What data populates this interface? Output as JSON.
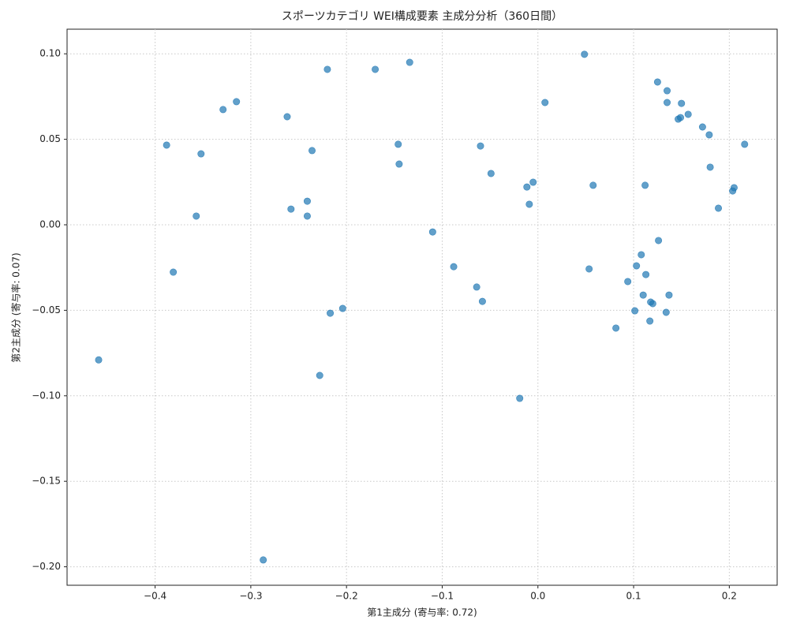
{
  "chart_data": {
    "type": "scatter",
    "title": "スポーツカテゴリ WEI構成要素 主成分分析（360日間）",
    "x_label": "第1主成分 (寄与率: 0.72)",
    "y_label": "第2主成分 (寄与率: 0.07)",
    "color": "#1f77b4",
    "grid": true,
    "xlim": [
      -0.492,
      0.25
    ],
    "ylim": [
      -0.2108,
      0.1144
    ],
    "xticks": [
      {
        "value": -0.4,
        "label": "−0.4"
      },
      {
        "value": -0.3,
        "label": "−0.3"
      },
      {
        "value": -0.2,
        "label": "−0.2"
      },
      {
        "value": -0.1,
        "label": "−0.1"
      },
      {
        "value": 0,
        "label": "0.0"
      },
      0.1,
      0.2
    ],
    "yticks": [
      {
        "value": -0.2,
        "label": "−0.20"
      },
      {
        "value": -0.15,
        "label": "−0.15"
      },
      {
        "value": -0.1,
        "label": "−0.10"
      },
      {
        "value": -0.05,
        "label": "−0.05"
      },
      {
        "value": 0,
        "label": "0.00"
      },
      {
        "value": 0.05,
        "label": "0.05"
      },
      {
        "value": 0.1,
        "label": "0.10"
      }
    ],
    "x": [
      -0.459,
      -0.388,
      -0.381,
      -0.357,
      -0.352,
      -0.329,
      -0.315,
      -0.287,
      -0.262,
      -0.258,
      -0.241,
      -0.241,
      -0.236,
      -0.228,
      -0.22,
      -0.217,
      -0.204,
      -0.17,
      -0.146,
      -0.145,
      -0.134,
      -0.11,
      -0.088,
      -0.064,
      -0.06,
      -0.058,
      -0.049,
      -0.019,
      -0.0115,
      -0.009,
      -0.005,
      0.0074,
      0.0486,
      0.0535,
      0.0577,
      0.0815,
      0.0939,
      0.1013,
      0.103,
      0.108,
      0.11,
      0.112,
      0.1128,
      0.117,
      0.1178,
      0.12,
      0.125,
      0.126,
      0.134,
      0.135,
      0.135,
      0.137,
      0.1466,
      0.149,
      0.15,
      0.157,
      0.172,
      0.179,
      0.18,
      0.1886,
      0.2035,
      0.205,
      0.216
    ],
    "values": [
      -0.079,
      0.0466,
      -0.0277,
      0.0051,
      0.0415,
      0.0674,
      0.072,
      -0.196,
      0.0632,
      0.0092,
      0.0138,
      0.0051,
      0.0434,
      -0.0881,
      0.0909,
      -0.0517,
      -0.0489,
      0.0909,
      0.0471,
      0.0355,
      0.095,
      -0.0042,
      -0.0245,
      -0.0364,
      0.0461,
      -0.0448,
      0.03,
      -0.1015,
      0.0221,
      0.012,
      0.0249,
      0.0715,
      0.0997,
      -0.0258,
      0.0231,
      -0.0604,
      -0.0332,
      -0.0503,
      -0.024,
      -0.0175,
      -0.0411,
      0.0231,
      -0.0291,
      -0.0563,
      -0.0452,
      -0.0461,
      0.0835,
      -0.0092,
      -0.0512,
      0.0715,
      0.0784,
      -0.0411,
      0.0618,
      0.0627,
      0.071,
      0.0646,
      0.0572,
      0.0526,
      0.0337,
      0.0097,
      0.0198,
      0.0217,
      0.0471
    ]
  }
}
